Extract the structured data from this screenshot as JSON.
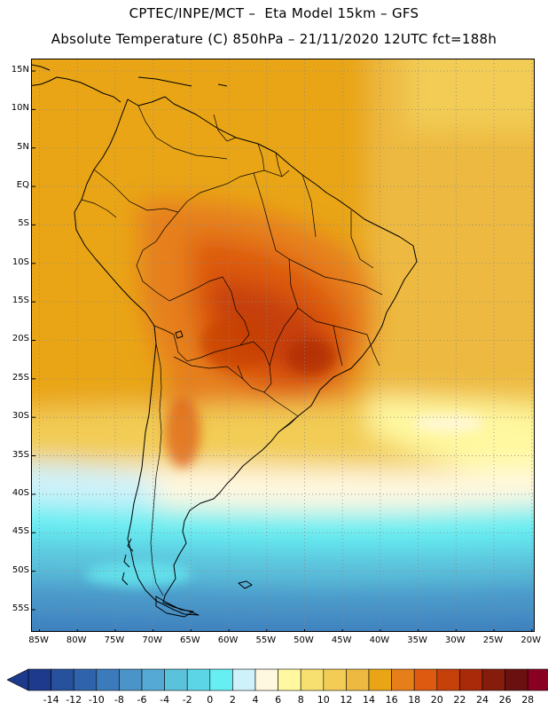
{
  "header": {
    "line1": "CPTEC/INPE/MCT –  Eta Model 15km – GFS",
    "line2": "Absolute Temperature (C) 850hPa – 21/11/2020 12UTC fct=188h"
  },
  "map": {
    "lat_labels": [
      "15N",
      "10N",
      "5N",
      "EQ",
      "5S",
      "10S",
      "15S",
      "20S",
      "25S",
      "30S",
      "35S",
      "40S",
      "45S",
      "50S",
      "55S"
    ],
    "lon_labels": [
      "85W",
      "80W",
      "75W",
      "70W",
      "65W",
      "60W",
      "55W",
      "50W",
      "45W",
      "40W",
      "35W",
      "30W",
      "25W",
      "20W"
    ],
    "lat_values": [
      15,
      10,
      5,
      0,
      -5,
      -10,
      -15,
      -20,
      -25,
      -30,
      -35,
      -40,
      -45,
      -50,
      -55
    ],
    "lon_values": [
      -85,
      -80,
      -75,
      -70,
      -65,
      -60,
      -55,
      -50,
      -45,
      -40,
      -35,
      -30,
      -25,
      -20
    ],
    "extent": {
      "lon_min": -86,
      "lon_max": -19.5,
      "lat_min": -58,
      "lat_max": 16.5
    }
  },
  "legend": {
    "units": "C",
    "labels": [
      "-14",
      "-12",
      "-10",
      "-8",
      "-6",
      "-4",
      "-2",
      "0",
      "2",
      "4",
      "6",
      "8",
      "10",
      "12",
      "14",
      "16",
      "18",
      "20",
      "22",
      "24",
      "26",
      "28"
    ],
    "colors": [
      "#1e3a8c",
      "#27519c",
      "#2f64ac",
      "#3b7bbc",
      "#4a94c8",
      "#54aad4",
      "#5bc2dc",
      "#5cd6e6",
      "#66eef2",
      "#cff2fa",
      "#fff8e0",
      "#fff8a0",
      "#f8e070",
      "#f2cc55",
      "#edb940",
      "#e9a515",
      "#e67f1a",
      "#dd5a10",
      "#c64009",
      "#a82a08",
      "#861c0c",
      "#6a1010",
      "#8a0022"
    ],
    "under_color": "#1e3a8c",
    "over_color": "#8a0022"
  }
}
